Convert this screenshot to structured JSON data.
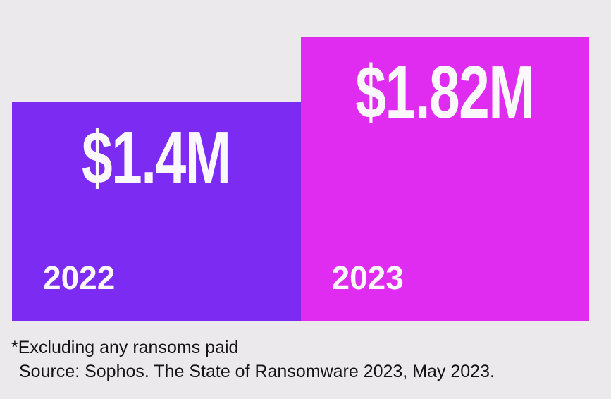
{
  "chart_data": {
    "type": "bar",
    "categories": [
      "2022",
      "2023"
    ],
    "values": [
      1.4,
      1.82
    ],
    "value_labels": [
      "$1.4M",
      "$1.82M"
    ],
    "bar_colors": [
      "#7B2BF2",
      "#E02CF0"
    ],
    "label_color": "#FBF8FC",
    "background_color": "#EBE9EB",
    "title": "",
    "xlabel": "",
    "ylabel": "",
    "ylim": [
      0,
      1.82
    ],
    "grid": false,
    "legend_position": "none",
    "footnote": "*Excluding any ransoms paid",
    "source": "Source: Sophos. The State of Ransomware 2023, May 2023."
  }
}
